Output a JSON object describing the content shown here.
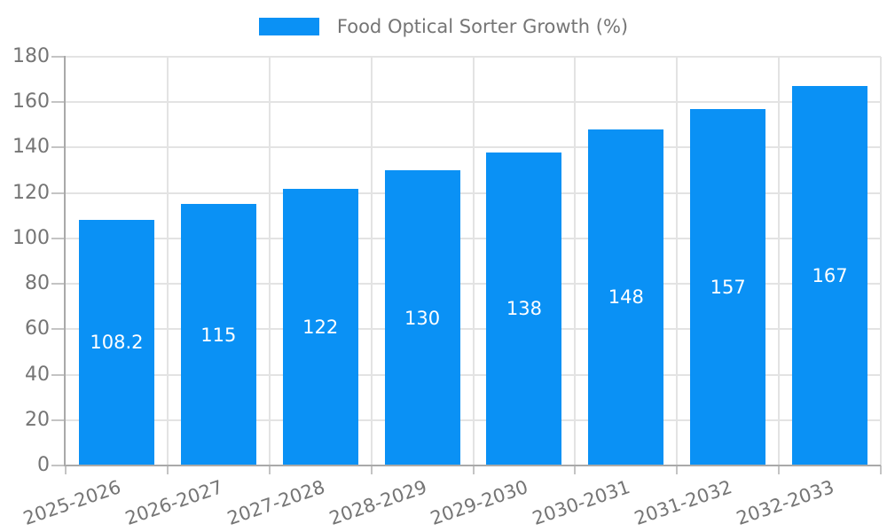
{
  "chart_data": {
    "type": "bar",
    "title": "Food Optical Sorter Growth (%)",
    "categories": [
      "2025-2026",
      "2026-2027",
      "2027-2028",
      "2028-2029",
      "2029-2030",
      "2030-2031",
      "2031-2032",
      "2032-2033"
    ],
    "values": [
      108.2,
      115,
      122,
      130,
      138,
      148,
      157,
      167
    ],
    "value_labels": [
      "108.2",
      "115",
      "122",
      "130",
      "138",
      "148",
      "157",
      "167"
    ],
    "xlabel": "",
    "ylabel": "",
    "ylim": [
      0,
      180
    ],
    "ytick_step": 20,
    "ytick_labels": [
      "0",
      "20",
      "40",
      "60",
      "80",
      "100",
      "120",
      "140",
      "160",
      "180"
    ],
    "grid": true,
    "legend_position": "top",
    "colors": {
      "bar": "#0a91f5",
      "bar_label_text": "#ffffff",
      "gridline": "#e3e3e3",
      "axis_line": "#a9a9a9",
      "tick_mark": "#c4c4c4",
      "label_text": "#757575",
      "background": "#ffffff"
    }
  }
}
